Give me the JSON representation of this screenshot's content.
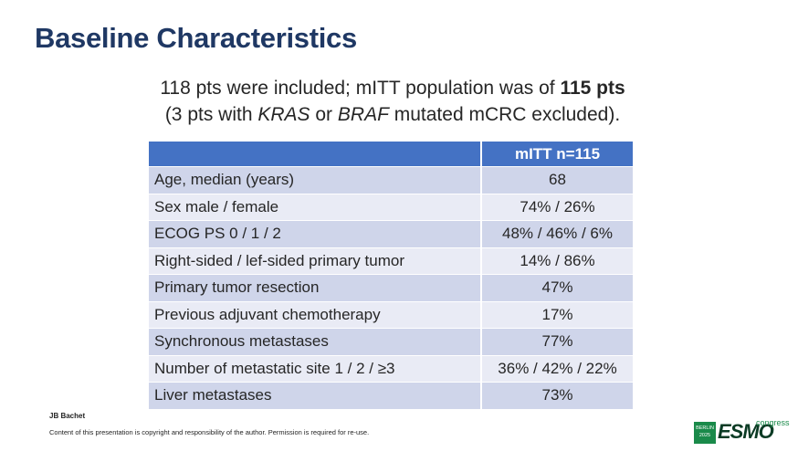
{
  "title": "Baseline Characteristics",
  "subtitle": {
    "line1_pre": "118 pts were included; mITT population was of ",
    "line1_bold": "115 pts",
    "line2_pre": "(3 pts with ",
    "line2_kras": "KRAS",
    "line2_mid": " or ",
    "line2_braf": "BRAF",
    "line2_post": " mutated mCRC excluded)."
  },
  "table": {
    "header_col1": "",
    "header_col2": "mITT n=115",
    "rows": [
      {
        "label": "Age, median (years)",
        "value": "68"
      },
      {
        "label": "Sex male / female",
        "value": "74% / 26%"
      },
      {
        "label": "ECOG PS 0 / 1 / 2",
        "value": "48% / 46% / 6%"
      },
      {
        "label": "Right-sided / lef-sided primary tumor",
        "value": "14% / 86%"
      },
      {
        "label": "Primary tumor resection",
        "value": "47%"
      },
      {
        "label": "Previous adjuvant chemotherapy",
        "value": "17%"
      },
      {
        "label": "Synchronous metastases",
        "value": "77%"
      },
      {
        "label": "Number of metastatic site 1 / 2 / ≥3",
        "value": "36% / 42% / 22%"
      },
      {
        "label": "Liver metastases",
        "value": "73%"
      }
    ]
  },
  "footer": {
    "author": "JB Bachet",
    "copyright": "Content of this presentation is copyright and responsibility of the author. Permission is required for re-use."
  },
  "logo": {
    "city": "BERLIN",
    "year": "2025",
    "brand": "ESMO",
    "word": "congress"
  }
}
